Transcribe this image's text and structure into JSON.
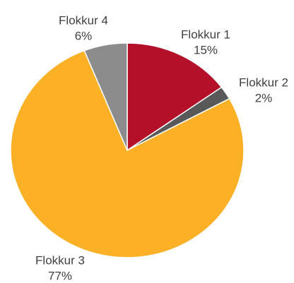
{
  "chart_data": {
    "type": "pie",
    "categories": [
      "Flokkur 1",
      "Flokkur 2",
      "Flokkur 3",
      "Flokkur 4"
    ],
    "values": [
      15,
      2,
      77,
      6
    ],
    "value_labels": [
      "15%",
      "2%",
      "77%",
      "6%"
    ],
    "colors": [
      "#b5102a",
      "#595959",
      "#fbb026",
      "#8c8c8c"
    ]
  }
}
